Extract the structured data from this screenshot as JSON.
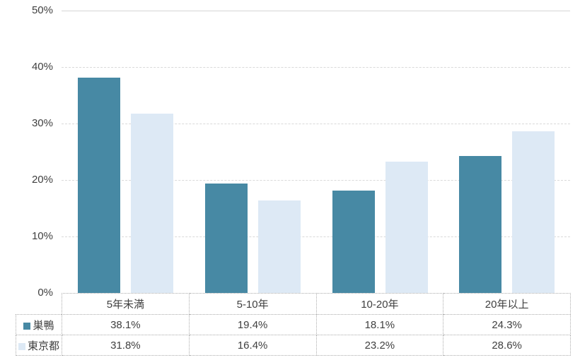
{
  "chart_data": {
    "type": "bar",
    "title": "",
    "xlabel": "",
    "ylabel": "",
    "categories": [
      "5年未満",
      "5-10年",
      "10-20年",
      "20年以上"
    ],
    "series": [
      {
        "id": "sugamo",
        "name": "巣鴨",
        "color": "#4789a4",
        "values": [
          38.1,
          19.4,
          18.1,
          24.3
        ]
      },
      {
        "id": "tokyo",
        "name": "東京都",
        "color": "#dde9f5",
        "values": [
          31.8,
          16.4,
          23.2,
          28.6
        ]
      }
    ],
    "table_values": {
      "sugamo": [
        "38.1%",
        "19.4%",
        "18.1%",
        "24.3%"
      ],
      "tokyo": [
        "31.8%",
        "16.4%",
        "23.2%",
        "28.6%"
      ]
    },
    "ylim": [
      0,
      50
    ],
    "ytick_step": 10,
    "ytick_labels": [
      "0%",
      "10%",
      "20%",
      "30%",
      "40%",
      "50%"
    ],
    "grid": true,
    "gridline_style": "dashed",
    "legend_position": "data-table-left-column"
  },
  "colors": {
    "series_sugamo": "#4789a4",
    "series_tokyo": "#dde9f5",
    "gridline": "#d9d9d9",
    "table_border": "#ababab",
    "text": "#404040",
    "background": "#ffffff"
  }
}
